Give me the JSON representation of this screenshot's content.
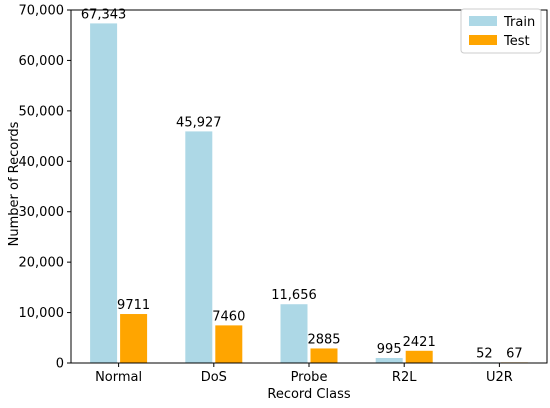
{
  "chart_data": {
    "type": "bar",
    "title": "",
    "xlabel": "Record Class",
    "ylabel": "Number of Records",
    "categories": [
      "Normal",
      "DoS",
      "Probe",
      "R2L",
      "U2R"
    ],
    "series": [
      {
        "name": "Train",
        "color": "#add8e6",
        "values": [
          67343,
          45927,
          11656,
          995,
          52
        ],
        "labels": [
          "67,343",
          "45,927",
          "11,656",
          "995",
          "52"
        ]
      },
      {
        "name": "Test",
        "color": "#ffa500",
        "values": [
          9711,
          7460,
          2885,
          2421,
          67
        ],
        "labels": [
          "9711",
          "7460",
          "2885",
          "2421",
          "67"
        ]
      }
    ],
    "ylim": [
      0,
      70000
    ],
    "yticks": [
      0,
      10000,
      20000,
      30000,
      40000,
      50000,
      60000,
      70000
    ],
    "ytick_labels": [
      "0",
      "10,000",
      "20,000",
      "30,000",
      "40,000",
      "50,000",
      "60,000",
      "70,000"
    ],
    "grid": false,
    "legend_position": "top-right"
  }
}
